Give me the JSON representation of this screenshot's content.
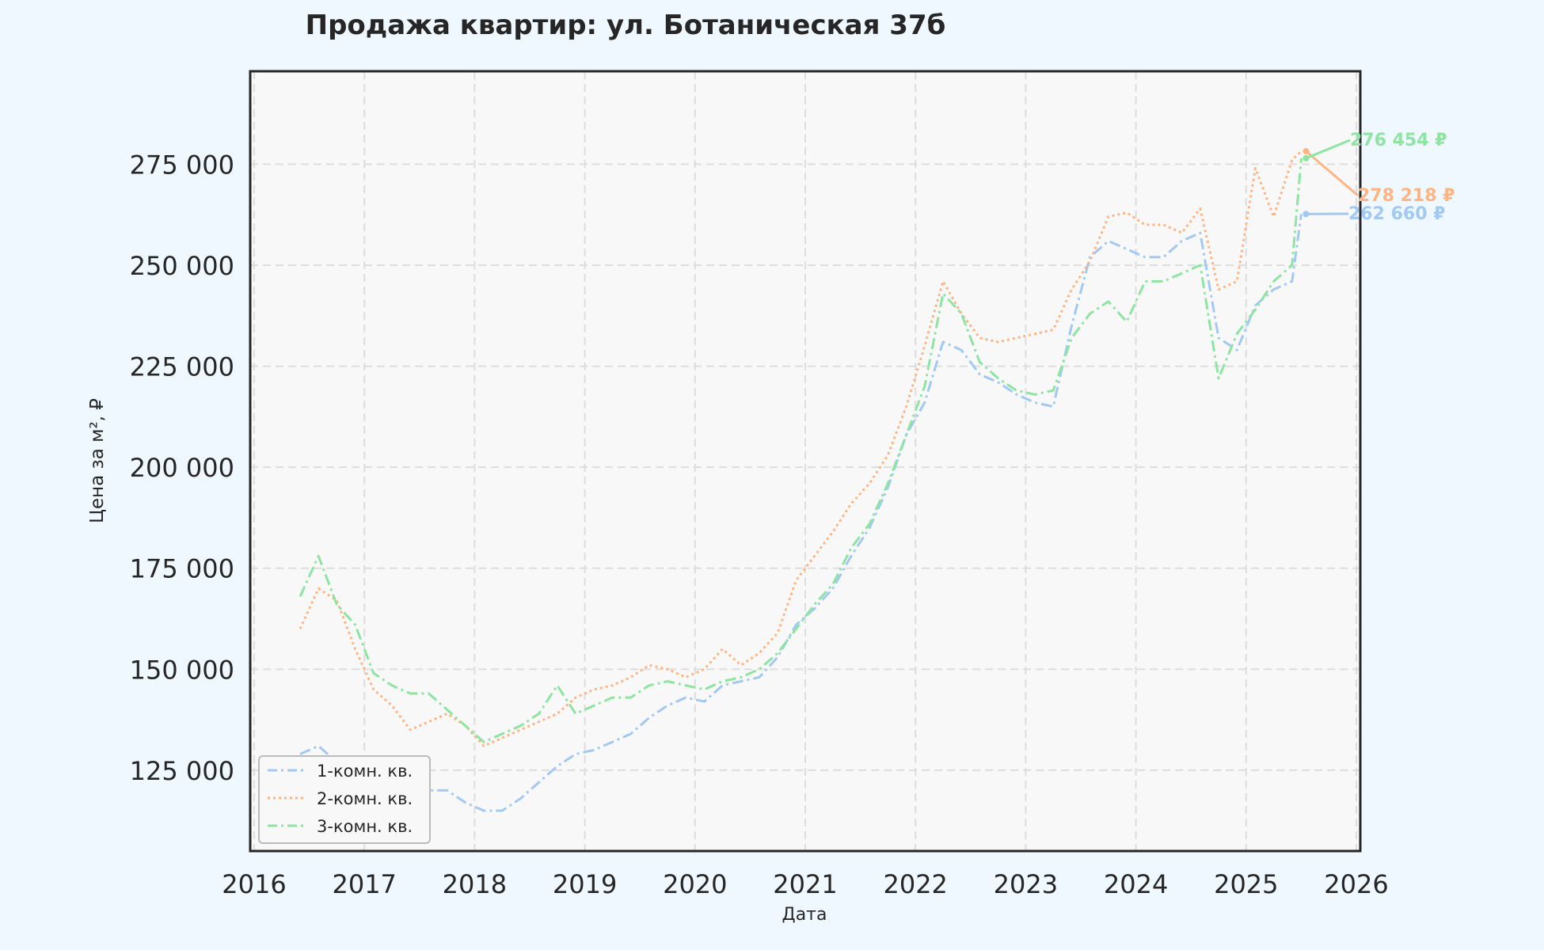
{
  "chart_data": {
    "type": "line",
    "title": "Продажа квартир: ул. Ботаническая 37б",
    "xlabel": "Дата",
    "ylabel": "Цена за м², ₽",
    "x_range": [
      "2016-01-01",
      "2026-01-01"
    ],
    "ylim": [
      105000,
      298000
    ],
    "x_ticks": [
      "2016",
      "2017",
      "2018",
      "2019",
      "2020",
      "2021",
      "2022",
      "2023",
      "2024",
      "2025",
      "2026"
    ],
    "y_ticks": [
      {
        "value": 125000,
        "label": "125 000"
      },
      {
        "value": 150000,
        "label": "150 000"
      },
      {
        "value": 175000,
        "label": "175 000"
      },
      {
        "value": 200000,
        "label": "200 000"
      },
      {
        "value": 225000,
        "label": "225 000"
      },
      {
        "value": 250000,
        "label": "250 000"
      },
      {
        "value": 275000,
        "label": "275 000"
      }
    ],
    "grid": true,
    "legend_position": "lower-left",
    "series": [
      {
        "name": "1-комн. кв.",
        "color": "#a1c9f4",
        "dash": "dashdot",
        "end_label": "262 660 ₽",
        "x": [
          "2016-06",
          "2016-08",
          "2016-10",
          "2016-12",
          "2017-02",
          "2017-04",
          "2017-06",
          "2017-08",
          "2017-10",
          "2017-12",
          "2018-02",
          "2018-04",
          "2018-06",
          "2018-08",
          "2018-10",
          "2018-12",
          "2019-02",
          "2019-04",
          "2019-06",
          "2019-08",
          "2019-10",
          "2019-12",
          "2020-02",
          "2020-04",
          "2020-06",
          "2020-08",
          "2020-10",
          "2020-12",
          "2021-02",
          "2021-04",
          "2021-06",
          "2021-08",
          "2021-10",
          "2021-12",
          "2022-02",
          "2022-04",
          "2022-06",
          "2022-08",
          "2022-10",
          "2022-12",
          "2023-02",
          "2023-04",
          "2023-06",
          "2023-08",
          "2023-10",
          "2023-12",
          "2024-02",
          "2024-04",
          "2024-06",
          "2024-08",
          "2024-10",
          "2024-12",
          "2025-02",
          "2025-04",
          "2025-06",
          "2025-07"
        ],
        "y": [
          129000,
          131000,
          127000,
          125000,
          124000,
          123000,
          121000,
          120000,
          120000,
          117000,
          115000,
          115000,
          118000,
          122000,
          126000,
          129000,
          130000,
          132000,
          134000,
          138000,
          141000,
          143000,
          142000,
          146000,
          147000,
          148000,
          153000,
          161000,
          165000,
          170000,
          178000,
          185000,
          195000,
          208000,
          216000,
          231000,
          229000,
          223000,
          221000,
          218000,
          216000,
          215000,
          235000,
          252000,
          256000,
          254000,
          252000,
          252000,
          256000,
          258000,
          232000,
          229000,
          240000,
          244000,
          246000,
          262660
        ]
      },
      {
        "name": "2-комн. кв.",
        "color": "#ffb482",
        "dash": "dotted",
        "end_label": "278 218 ₽",
        "x": [
          "2016-06",
          "2016-08",
          "2016-10",
          "2016-12",
          "2017-02",
          "2017-04",
          "2017-06",
          "2017-08",
          "2017-10",
          "2017-12",
          "2018-02",
          "2018-04",
          "2018-06",
          "2018-08",
          "2018-10",
          "2018-12",
          "2019-02",
          "2019-04",
          "2019-06",
          "2019-08",
          "2019-10",
          "2019-12",
          "2020-02",
          "2020-04",
          "2020-06",
          "2020-08",
          "2020-10",
          "2020-12",
          "2021-02",
          "2021-04",
          "2021-06",
          "2021-08",
          "2021-10",
          "2021-12",
          "2022-02",
          "2022-04",
          "2022-06",
          "2022-08",
          "2022-10",
          "2022-12",
          "2023-02",
          "2023-04",
          "2023-06",
          "2023-08",
          "2023-10",
          "2023-12",
          "2024-02",
          "2024-04",
          "2024-06",
          "2024-08",
          "2024-10",
          "2024-12",
          "2025-02",
          "2025-04",
          "2025-06",
          "2025-07"
        ],
        "y": [
          160000,
          170000,
          167000,
          155000,
          145000,
          141000,
          135000,
          137000,
          139000,
          136000,
          131000,
          133000,
          135000,
          137000,
          139000,
          143000,
          145000,
          146000,
          148000,
          151000,
          150000,
          148000,
          150000,
          155000,
          151000,
          154000,
          159000,
          172000,
          178000,
          184000,
          191000,
          196000,
          203000,
          215000,
          230000,
          246000,
          238000,
          232000,
          231000,
          232000,
          233000,
          234000,
          244000,
          251000,
          262000,
          263000,
          260000,
          260000,
          258000,
          264000,
          244000,
          246000,
          274000,
          262000,
          276000,
          278218
        ]
      },
      {
        "name": "3-комн. кв.",
        "color": "#8de5a1",
        "dash": "dashdot",
        "end_label": "276 454 ₽",
        "x": [
          "2016-06",
          "2016-08",
          "2016-10",
          "2016-12",
          "2017-02",
          "2017-04",
          "2017-06",
          "2017-08",
          "2017-10",
          "2017-12",
          "2018-02",
          "2018-04",
          "2018-06",
          "2018-08",
          "2018-10",
          "2018-12",
          "2019-02",
          "2019-04",
          "2019-06",
          "2019-08",
          "2019-10",
          "2019-12",
          "2020-02",
          "2020-04",
          "2020-06",
          "2020-08",
          "2020-10",
          "2020-12",
          "2021-02",
          "2021-04",
          "2021-06",
          "2021-08",
          "2021-10",
          "2021-12",
          "2022-02",
          "2022-04",
          "2022-06",
          "2022-08",
          "2022-10",
          "2022-12",
          "2023-02",
          "2023-04",
          "2023-06",
          "2023-08",
          "2023-10",
          "2023-12",
          "2024-02",
          "2024-04",
          "2024-06",
          "2024-08",
          "2024-10",
          "2024-12",
          "2025-02",
          "2025-04",
          "2025-06",
          "2025-07"
        ],
        "y": [
          168000,
          178000,
          166000,
          161000,
          149000,
          146000,
          144000,
          144000,
          140000,
          136000,
          132000,
          134000,
          136000,
          139000,
          146000,
          139000,
          141000,
          143000,
          143000,
          146000,
          147000,
          146000,
          145000,
          147000,
          148000,
          150000,
          154000,
          160000,
          166000,
          171000,
          180000,
          186000,
          196000,
          208000,
          220000,
          243000,
          238000,
          226000,
          222000,
          219000,
          218000,
          219000,
          232000,
          238000,
          241000,
          236000,
          246000,
          246000,
          248000,
          250000,
          222000,
          233000,
          239000,
          246000,
          250000,
          276454
        ]
      }
    ]
  }
}
